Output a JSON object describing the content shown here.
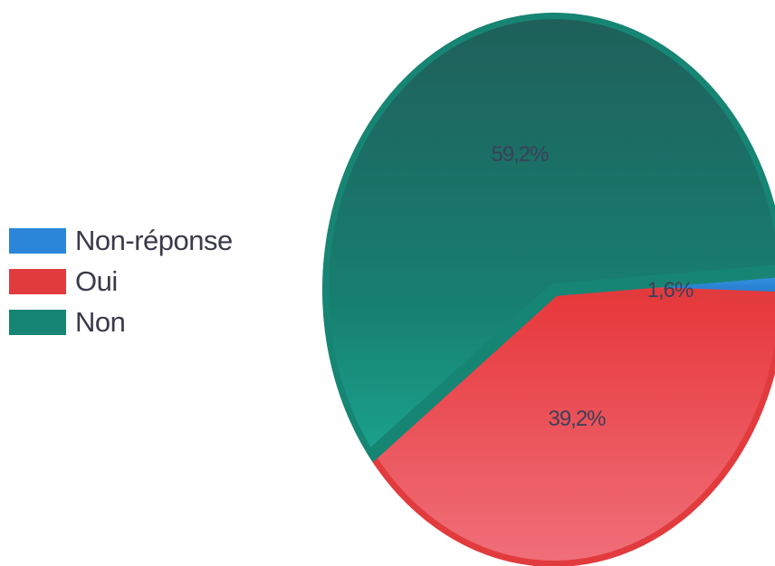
{
  "chart_data": {
    "type": "pie",
    "title": "",
    "legend_position": "left",
    "slices": [
      {
        "label": "Non-réponse",
        "value": 1.6,
        "value_label": "1,6%",
        "color": "#2b86d9"
      },
      {
        "label": "Oui",
        "value": 39.2,
        "value_label": "39,2%",
        "color": "#e23b3e"
      },
      {
        "label": "Non",
        "value": 59.2,
        "value_label": "59,2%",
        "color": "#178574"
      }
    ]
  }
}
